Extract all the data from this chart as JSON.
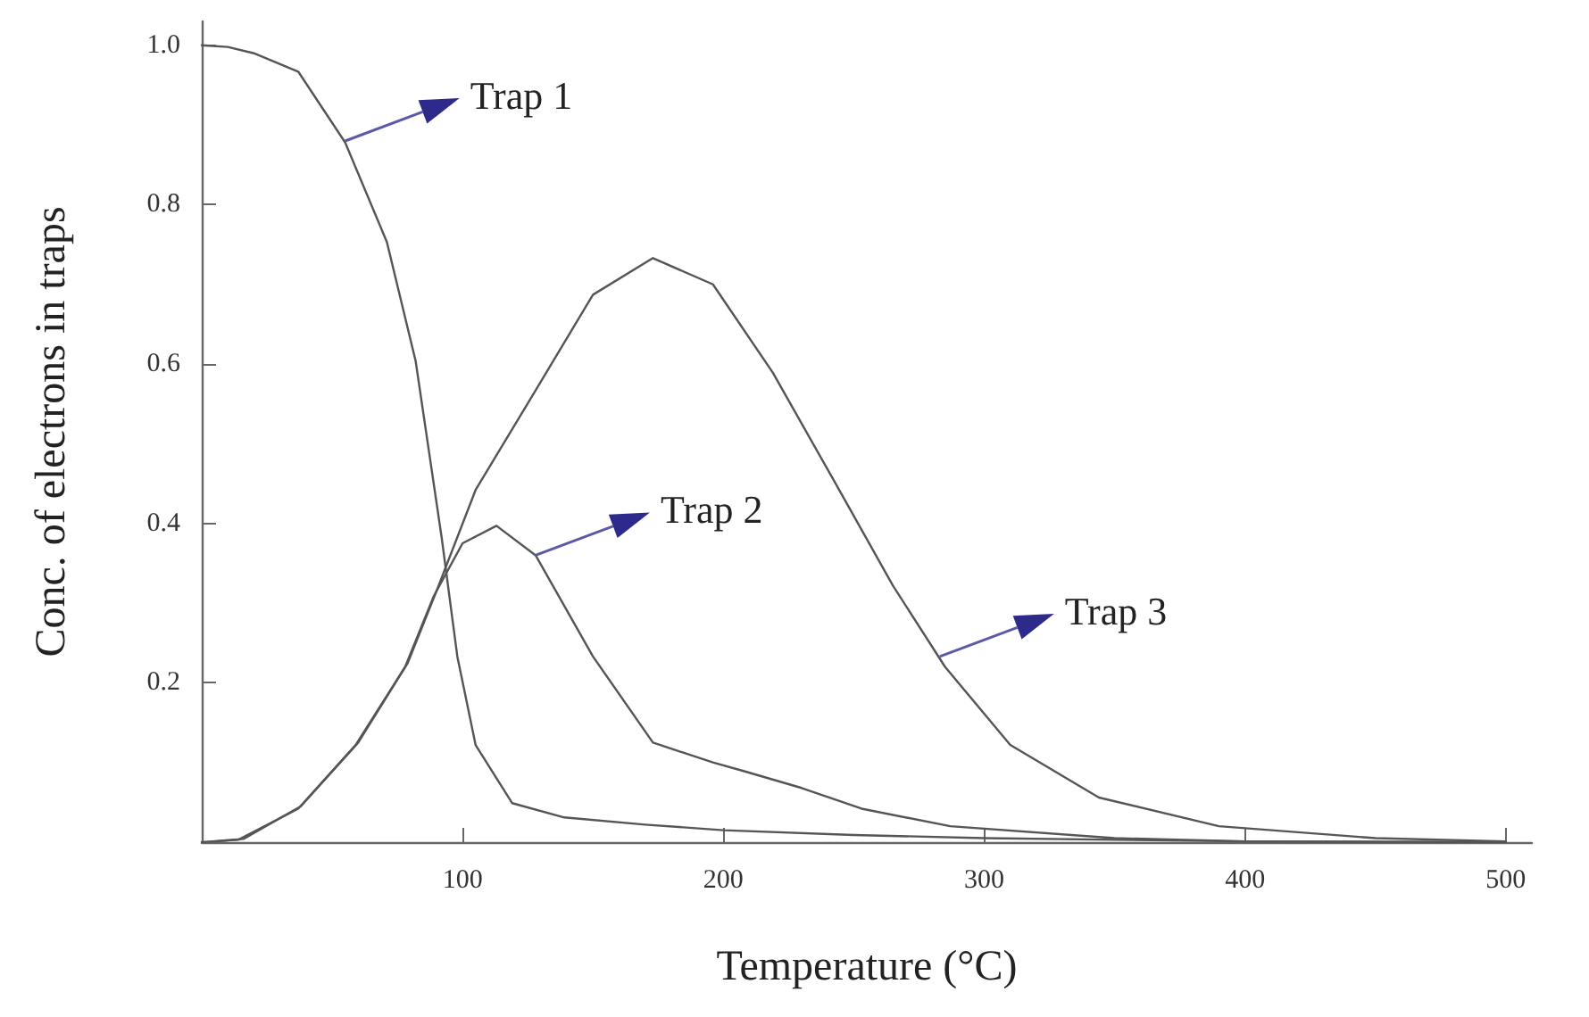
{
  "chart_data": {
    "type": "line",
    "xlabel": "Temperature (°C)",
    "ylabel": "Conc. of electrons in traps",
    "xlim": [
      0,
      510
    ],
    "xticks": [
      100,
      200,
      300,
      400,
      500
    ],
    "ylim": [
      0,
      1.03
    ],
    "yticks": [
      0.2,
      0.4,
      0.6,
      0.8,
      {
        "value": 1,
        "label": "1.0"
      }
    ],
    "grid": false,
    "marker": "none",
    "line_style": "solid",
    "series": [
      {
        "color": "#555555",
        "x": [
          0,
          10,
          20,
          37,
          55,
          71,
          82,
          92,
          98,
          105,
          119,
          139,
          170,
          200,
          250,
          300,
          400,
          500
        ],
        "values": [
          1.0,
          0.998,
          0.99,
          0.967,
          0.878,
          0.753,
          0.604,
          0.382,
          0.233,
          0.122,
          0.049,
          0.031,
          0.022,
          0.015,
          0.009,
          0.005,
          0.001,
          0
        ]
      },
      {
        "color": "#555555",
        "x": [
          0,
          14,
          37,
          59,
          78,
          89,
          100,
          113,
          128,
          150,
          173,
          196,
          208,
          230,
          253,
          287,
          350,
          400,
          480
        ],
        "values": [
          0,
          0.003,
          0.042,
          0.122,
          0.22,
          0.309,
          0.375,
          0.397,
          0.36,
          0.233,
          0.125,
          0.1,
          0.089,
          0.068,
          0.042,
          0.02,
          0.005,
          0.001,
          0
        ]
      },
      {
        "color": "#555555",
        "x": [
          5,
          16,
          38,
          60,
          79,
          90,
          105,
          128,
          150,
          173,
          196,
          219,
          242,
          265,
          285,
          310,
          344,
          390,
          450,
          500
        ],
        "values": [
          0.001,
          0.004,
          0.045,
          0.125,
          0.225,
          0.315,
          0.442,
          0.567,
          0.687,
          0.733,
          0.7,
          0.589,
          0.456,
          0.322,
          0.22,
          0.122,
          0.056,
          0.02,
          0.005,
          0.001
        ]
      }
    ],
    "annotations": [
      {
        "text": "Trap 1",
        "x": 55,
        "y": 0.88
      },
      {
        "text": "Trap 2",
        "x": 128,
        "y": 0.36
      },
      {
        "text": "Trap 3",
        "x": 283,
        "y": 0.233
      }
    ]
  }
}
